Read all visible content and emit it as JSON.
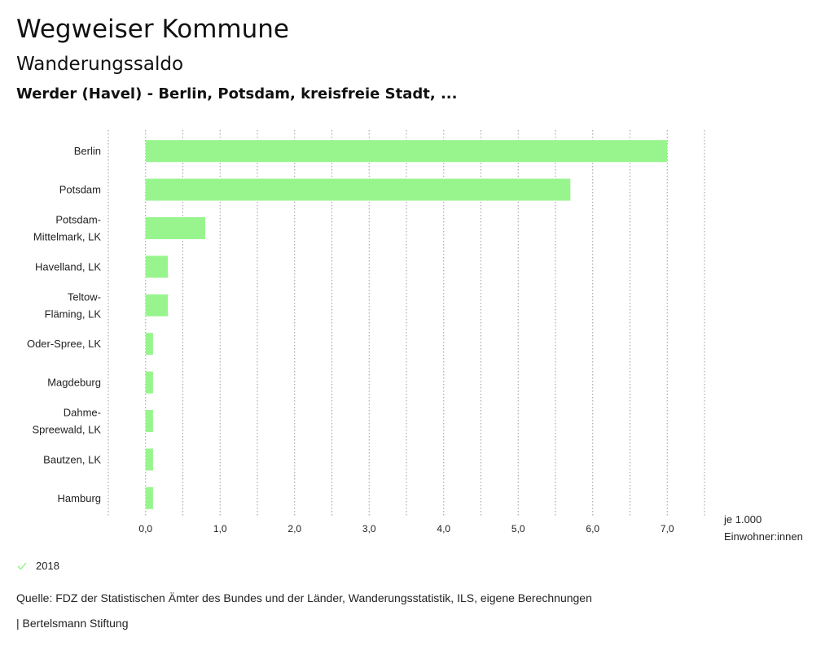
{
  "header": {
    "title": "Wegweiser Kommune",
    "subtitle": "Wanderungssaldo",
    "selection": "Werder (Havel) - Berlin, Potsdam, kreisfreie Stadt, ..."
  },
  "chart_data": {
    "type": "bar",
    "orientation": "horizontal",
    "categories": [
      [
        "Berlin"
      ],
      [
        "Potsdam"
      ],
      [
        "Potsdam-",
        "Mittelmark, LK"
      ],
      [
        "Havelland, LK"
      ],
      [
        "Teltow-",
        "Fläming, LK"
      ],
      [
        "Oder-Spree, LK"
      ],
      [
        "Magdeburg"
      ],
      [
        "Dahme-",
        "Spreewald, LK"
      ],
      [
        "Bautzen, LK"
      ],
      [
        "Hamburg"
      ]
    ],
    "series": [
      {
        "name": "2018",
        "values": [
          7.0,
          5.7,
          0.8,
          0.3,
          0.3,
          0.1,
          0.1,
          0.1,
          0.1,
          0.1
        ]
      }
    ],
    "xlim": [
      -0.5,
      7.5
    ],
    "xticks": [
      0,
      1,
      2,
      3,
      4,
      5,
      6,
      7
    ],
    "xtick_labels": [
      "0,0",
      "1,0",
      "2,0",
      "3,0",
      "4,0",
      "5,0",
      "6,0",
      "7,0"
    ],
    "xlabel": [
      "je 1.000",
      "Einwohner:innen"
    ],
    "grid": "vertical dotted",
    "color": "#98f58e"
  },
  "legend": {
    "label": "2018",
    "color": "#98f58e"
  },
  "footer": {
    "source": "Quelle: FDZ der Statistischen Ämter des Bundes und der Länder, Wanderungsstatistik, ILS, eigene Berechnungen",
    "publisher": "| Bertelsmann Stiftung"
  }
}
